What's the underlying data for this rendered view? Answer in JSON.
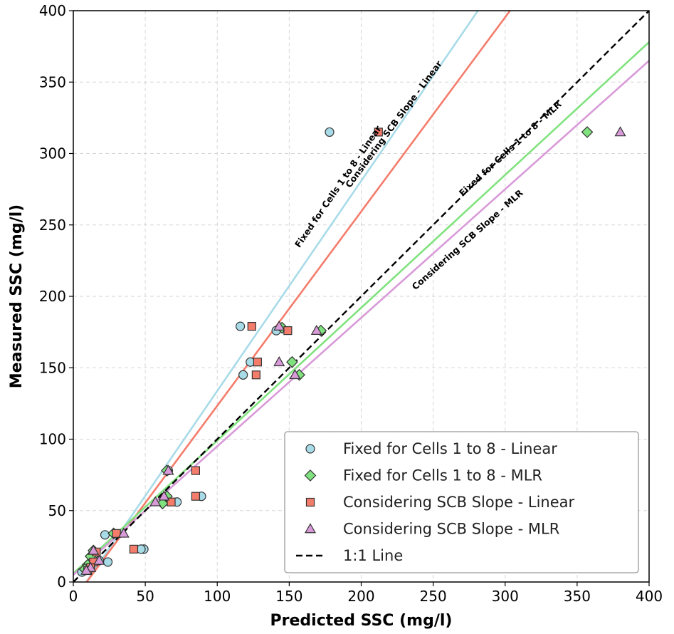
{
  "chart_data": {
    "type": "scatter",
    "title": "",
    "xlabel": "Predicted SSC (mg/l)",
    "ylabel": "Measured SSC (mg/l)",
    "xlim": [
      0,
      400
    ],
    "ylim": [
      0,
      400
    ],
    "xticks": [
      "0",
      "50",
      "100",
      "150",
      "200",
      "250",
      "300",
      "350",
      "400"
    ],
    "yticks": [
      "0",
      "50",
      "100",
      "150",
      "200",
      "250",
      "300",
      "350",
      "400"
    ],
    "grid": true,
    "legend_position": "bottom-right",
    "series": [
      {
        "name": "Fixed for Cells 1 to 8 - Linear",
        "marker": "circle",
        "color": "#a8dbe8",
        "points": [
          [
            178,
            315
          ],
          [
            116,
            179
          ],
          [
            141,
            176
          ],
          [
            123,
            154
          ],
          [
            118,
            145
          ],
          [
            89,
            60
          ],
          [
            72,
            56
          ],
          [
            66,
            78
          ],
          [
            49,
            23
          ],
          [
            47,
            23
          ],
          [
            24,
            14
          ],
          [
            22,
            33
          ],
          [
            18,
            15
          ],
          [
            14,
            21
          ],
          [
            12,
            11
          ],
          [
            10,
            9
          ],
          [
            8,
            8
          ],
          [
            6,
            7
          ]
        ]
      },
      {
        "name": "Fixed for Cells 1 to 8 - MLR",
        "marker": "diamond",
        "color": "#80e27e",
        "points": [
          [
            357,
            315
          ],
          [
            172,
            176
          ],
          [
            145,
            178
          ],
          [
            152,
            154
          ],
          [
            157,
            145
          ],
          [
            62,
            55
          ],
          [
            65,
            60
          ],
          [
            65,
            78
          ],
          [
            28,
            34
          ],
          [
            14,
            22
          ],
          [
            12,
            18
          ],
          [
            10,
            12
          ],
          [
            8,
            9
          ]
        ]
      },
      {
        "name": "Considering SCB Slope - Linear",
        "marker": "square",
        "color": "#f47c6b",
        "points": [
          [
            212,
            315
          ],
          [
            124,
            179
          ],
          [
            149,
            176
          ],
          [
            128,
            154
          ],
          [
            127,
            145
          ],
          [
            85,
            78
          ],
          [
            85,
            60
          ],
          [
            68,
            56
          ],
          [
            42,
            23
          ],
          [
            30,
            34
          ],
          [
            16,
            21
          ],
          [
            14,
            14
          ],
          [
            12,
            10
          ],
          [
            10,
            8
          ]
        ]
      },
      {
        "name": "Considering SCB Slope - MLR",
        "marker": "triangle",
        "color": "#d89ad8",
        "points": [
          [
            380,
            315
          ],
          [
            143,
            179
          ],
          [
            169,
            176
          ],
          [
            143,
            154
          ],
          [
            154,
            145
          ],
          [
            66,
            78
          ],
          [
            57,
            56
          ],
          [
            63,
            60
          ],
          [
            35,
            34
          ],
          [
            18,
            15
          ],
          [
            14,
            22
          ],
          [
            12,
            10
          ],
          [
            9,
            8
          ]
        ]
      }
    ],
    "fit_lines": [
      {
        "name": "Fixed for Cells 1 to 8 - Linear",
        "color": "#a8dbe8",
        "slope": 1.47,
        "intercept": -13.2,
        "label": "Fixed for Cells 1 to 8 - Linear"
      },
      {
        "name": "Considering SCB Slope - Linear",
        "color": "#f47c6b",
        "slope": 1.36,
        "intercept": -12.6,
        "label": "Considering SCB Slope - Linear"
      },
      {
        "name": "Fixed for Cells 1 to 8 - MLR",
        "color": "#80e27e",
        "slope": 0.93,
        "intercept": 6.0,
        "label": "Fixed for Cells 1 to 8 - MLR"
      },
      {
        "name": "Considering SCB Slope - MLR",
        "color": "#d89ad8",
        "slope": 0.9,
        "intercept": 5.0,
        "label": "Considering SCB Slope - MLR"
      }
    ],
    "reference_line": {
      "name": "1:1 Line",
      "color": "#000000",
      "slope": 1,
      "intercept": 0,
      "style": "dashed"
    }
  }
}
